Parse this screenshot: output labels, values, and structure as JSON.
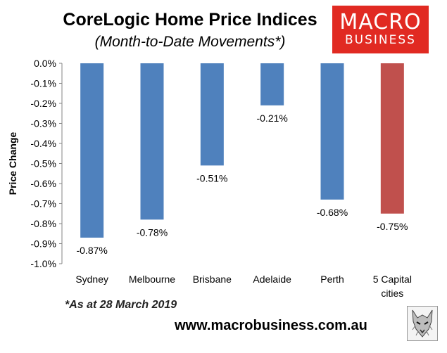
{
  "chart_data": {
    "type": "bar",
    "title": "CoreLogic Home Price Indices",
    "subtitle": "(Month-to-Date Movements*)",
    "ylabel": "Price Change",
    "xlabel": "",
    "ylim": [
      -1.0,
      0.0
    ],
    "yticks": [
      0.0,
      -0.1,
      -0.2,
      -0.3,
      -0.4,
      -0.5,
      -0.6,
      -0.7,
      -0.8,
      -0.9,
      -1.0
    ],
    "ytick_labels": [
      "0.0%",
      "-0.1%",
      "-0.2%",
      "-0.3%",
      "-0.4%",
      "-0.5%",
      "-0.6%",
      "-0.7%",
      "-0.8%",
      "-0.9%",
      "-1.0%"
    ],
    "categories": [
      [
        "Sydney"
      ],
      [
        "Melbourne"
      ],
      [
        "Brisbane"
      ],
      [
        "Adelaide"
      ],
      [
        "Perth"
      ],
      [
        "5 Capital",
        "cities"
      ]
    ],
    "values": [
      -0.87,
      -0.78,
      -0.51,
      -0.21,
      -0.68,
      -0.75
    ],
    "data_labels": [
      "-0.87%",
      "-0.78%",
      "-0.51%",
      "-0.21%",
      "-0.68%",
      "-0.75%"
    ],
    "colors": [
      "#4f81bd",
      "#4f81bd",
      "#4f81bd",
      "#4f81bd",
      "#4f81bd",
      "#c0504d"
    ],
    "grid": false,
    "legend": "none"
  },
  "logo": {
    "line1": "MACRO",
    "line2": "BUSINESS",
    "color": "#e12a22"
  },
  "footnote": "*As at 28 March 2019",
  "url": "www.macrobusiness.com.au"
}
